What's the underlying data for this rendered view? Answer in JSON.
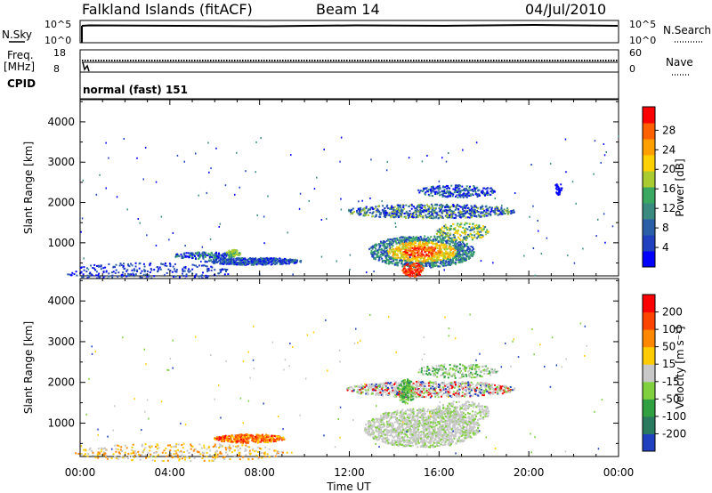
{
  "header": {
    "site": "Falkland Islands (fitACF)",
    "beam": "Beam 14",
    "date": "04/Jul/2010"
  },
  "panels": {
    "nsky": {
      "label": "N.Sky",
      "top_tick": "10^5",
      "bottom_tick": "10^0"
    },
    "nsearch": {
      "label": "N.Search",
      "top_tick": "10^5",
      "bottom_tick": "10^0"
    },
    "freq": {
      "label_line1": "Freq.",
      "label_line2": "[MHz]",
      "top_tick": "18",
      "bottom_tick": "8"
    },
    "nave": {
      "label": "Nave",
      "top_tick": "60",
      "bottom_tick": "0"
    },
    "cpid": {
      "label": "CPID",
      "value": "normal (fast) 151"
    }
  },
  "chart_data": [
    {
      "type": "heatmap",
      "title": "",
      "xlabel": "",
      "ylabel": "Slant Range [km]",
      "x_ticks": [
        "00:00",
        "04:00",
        "08:00",
        "12:00",
        "16:00",
        "20:00",
        "00:00"
      ],
      "y_ticks": [
        "1000",
        "2000",
        "3000",
        "4000"
      ],
      "ylim": [
        180,
        4550
      ],
      "colorbar": {
        "label": "Power [dB]",
        "ticks": [
          "4",
          "8",
          "12",
          "16",
          "20",
          "24",
          "28"
        ],
        "colors": [
          "#0000ff",
          "#2040c0",
          "#2a5fa8",
          "#3a8a80",
          "#3aa860",
          "#aacc30",
          "#ffd000",
          "#ffa000",
          "#ff6000",
          "#ff0000"
        ]
      }
    },
    {
      "type": "heatmap",
      "title": "",
      "xlabel": "Time UT",
      "ylabel": "Slant Range [km]",
      "x_ticks": [
        "00:00",
        "04:00",
        "08:00",
        "12:00",
        "16:00",
        "20:00",
        "00:00"
      ],
      "y_ticks": [
        "1000",
        "2000",
        "3000",
        "4000"
      ],
      "ylim": [
        180,
        4550
      ],
      "colorbar": {
        "label": "Velocity [m s⁻¹]",
        "ticks": [
          "200",
          "100",
          "50",
          "15",
          "-15",
          "-50",
          "-100",
          "-200"
        ],
        "colors": [
          "#2040c0",
          "#2a7a60",
          "#30a040",
          "#80d040",
          "#c8c8c8",
          "#ffcc00",
          "#ff8800",
          "#ff4400",
          "#ff0000"
        ]
      }
    }
  ]
}
